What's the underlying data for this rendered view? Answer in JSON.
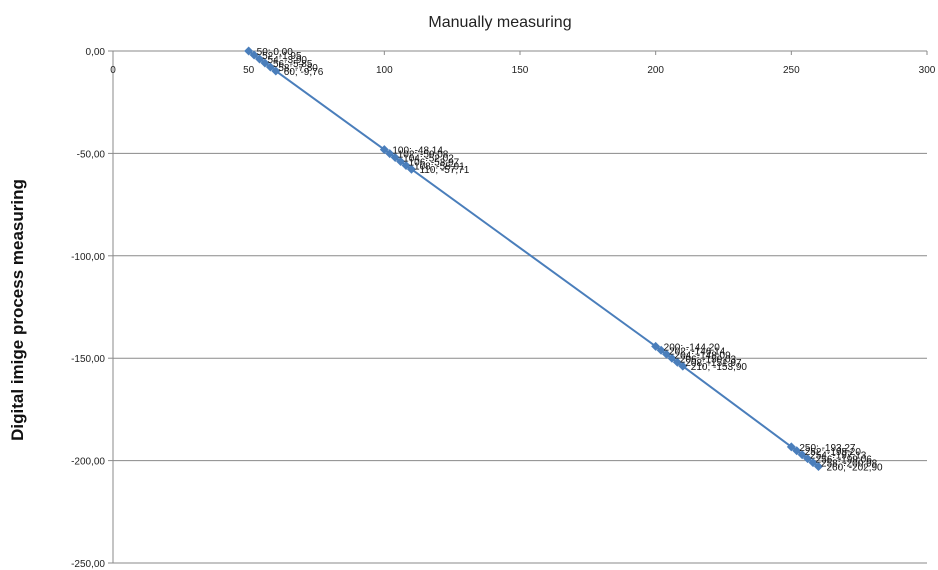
{
  "chart_data": {
    "type": "scatter",
    "title": "Manually measuring",
    "xlabel": "",
    "ylabel": "Digital imige process measuring",
    "xlim": [
      0,
      300
    ],
    "ylim": [
      -250,
      0
    ],
    "x_ticks": [
      "0",
      "50",
      "100",
      "150",
      "200",
      "250",
      "300"
    ],
    "y_ticks": [
      "0,00",
      "-50,00",
      "-100,00",
      "-150,00",
      "-200,00",
      "-250,00"
    ],
    "grid": true,
    "legend": "none",
    "series": [
      {
        "color": "#4a7ebb",
        "points": [
          {
            "x": 50,
            "y": 0.0,
            "label": "50; 0,00"
          },
          {
            "x": 52,
            "y": -1.95,
            "label": "52; -1,95"
          },
          {
            "x": 54,
            "y": -3.9,
            "label": "54; -3,90"
          },
          {
            "x": 56,
            "y": -5.85,
            "label": "56; -5,85"
          },
          {
            "x": 58,
            "y": -7.8,
            "label": "58; -7,80"
          },
          {
            "x": 60,
            "y": -9.76,
            "label": "60; -9,76"
          },
          {
            "x": 100,
            "y": -48.14,
            "label": "100; -48,14"
          },
          {
            "x": 102,
            "y": -50.08,
            "label": "102; -50,08"
          },
          {
            "x": 104,
            "y": -52.02,
            "label": "104; -52,02"
          },
          {
            "x": 106,
            "y": -53.97,
            "label": "106; -53,97"
          },
          {
            "x": 108,
            "y": -55.91,
            "label": "108; -55,91"
          },
          {
            "x": 110,
            "y": -57.71,
            "label": "110; -57,71"
          },
          {
            "x": 200,
            "y": -144.2,
            "label": "200; -144,20"
          },
          {
            "x": 202,
            "y": -146.14,
            "label": "202; -146,14"
          },
          {
            "x": 204,
            "y": -148.09,
            "label": "204; -148,09"
          },
          {
            "x": 206,
            "y": -150.03,
            "label": "206; -150,03"
          },
          {
            "x": 208,
            "y": -151.97,
            "label": "208; -151,97"
          },
          {
            "x": 210,
            "y": -153.9,
            "label": "210; -153,90"
          },
          {
            "x": 250,
            "y": -193.27,
            "label": "250; -193,27"
          },
          {
            "x": 252,
            "y": -195.2,
            "label": "252; -195,20"
          },
          {
            "x": 254,
            "y": -197.13,
            "label": "254; -197,13"
          },
          {
            "x": 256,
            "y": -199.06,
            "label": "256; -199,06"
          },
          {
            "x": 258,
            "y": -200.98,
            "label": "258; -200,98"
          },
          {
            "x": 260,
            "y": -202.9,
            "label": "260; -202,90"
          }
        ]
      }
    ]
  }
}
